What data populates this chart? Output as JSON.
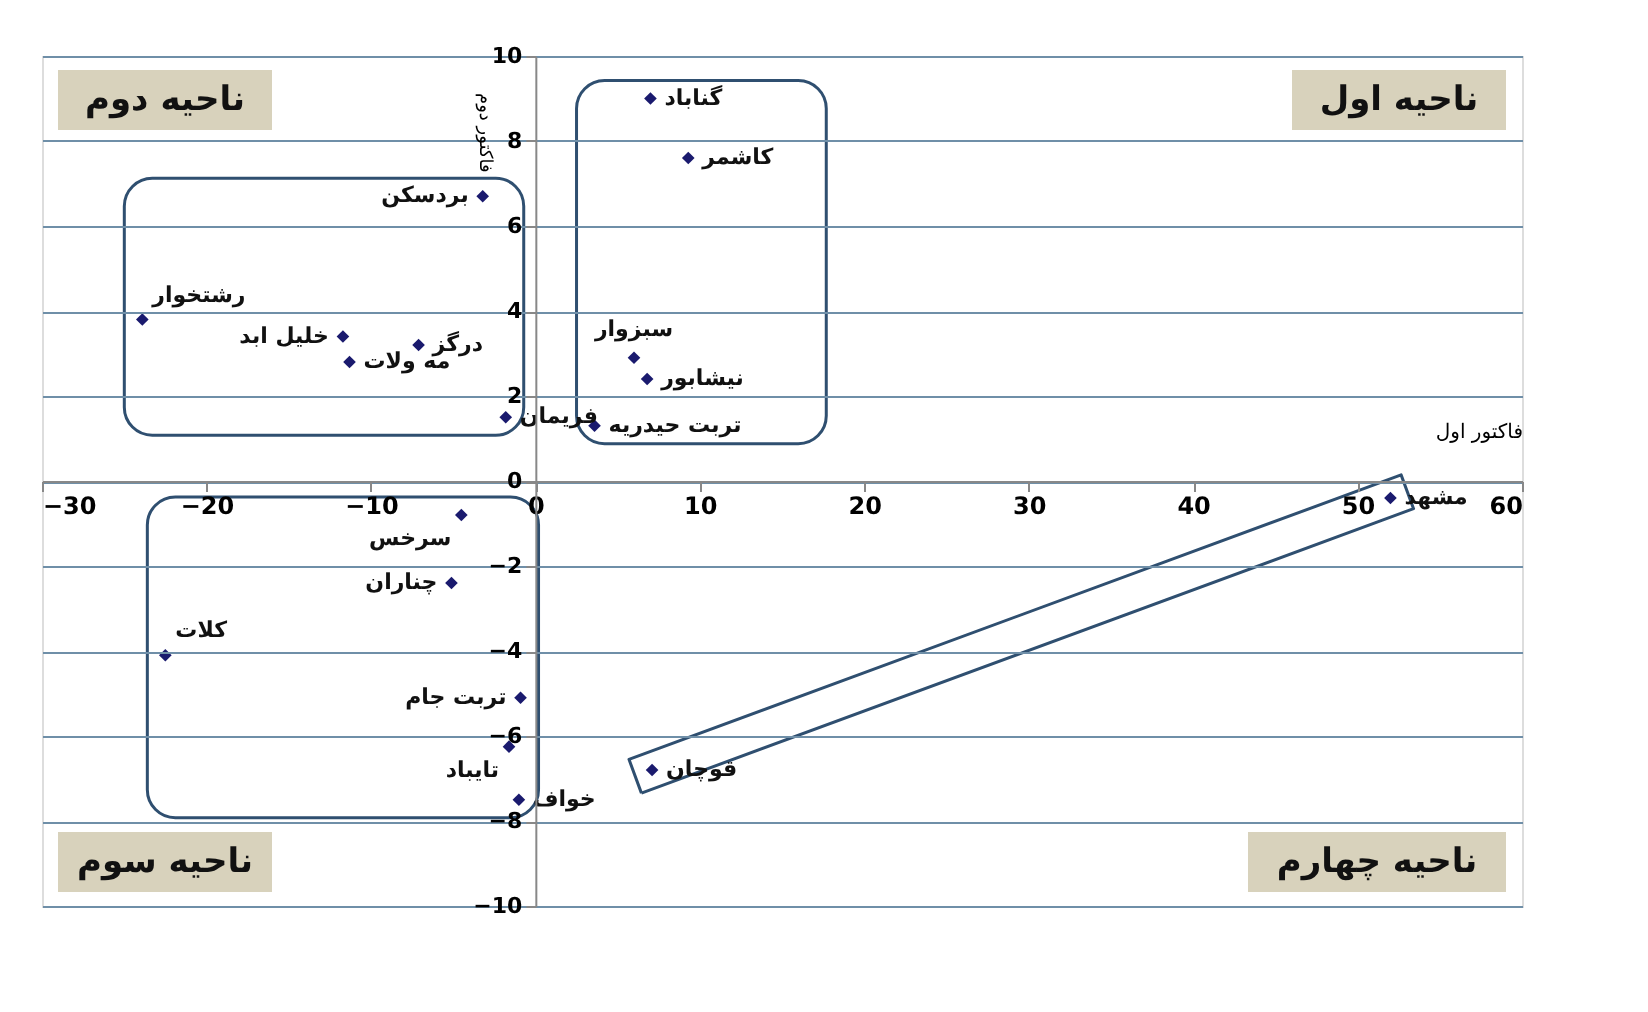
{
  "chart_data": {
    "type": "scatter",
    "xlabel": "فاکتور اول",
    "ylabel": "فاکتور دوم",
    "x": [
      7.0,
      9.3,
      -3.2,
      -23.9,
      -11.7,
      -11.3,
      -7.1,
      -1.8,
      6.0,
      6.8,
      3.6,
      -4.5,
      -5.1,
      -22.5,
      -0.9,
      -1.6,
      -1.0,
      7.1,
      52.0
    ],
    "series": [
      {
        "color": "#1a1a6e",
        "values": [
          9.0,
          7.6,
          6.7,
          3.8,
          3.4,
          2.8,
          3.2,
          1.5,
          2.9,
          2.4,
          1.3,
          -0.8,
          -2.4,
          -4.1,
          -5.1,
          -6.25,
          -7.5,
          -6.8,
          -0.4
        ]
      }
    ],
    "annotations": [
      {
        "text": "گناباد",
        "x": 7.0,
        "y": 9.0
      },
      {
        "text": "کاشمر",
        "x": 9.3,
        "y": 7.6
      },
      {
        "text": "بردسکن",
        "x": -3.2,
        "y": 6.7
      },
      {
        "text": "رشتخوار",
        "x": -23.9,
        "y": 3.8
      },
      {
        "text": "خلیل ابد",
        "x": -11.7,
        "y": 3.4
      },
      {
        "text": "مه ولات",
        "x": -11.3,
        "y": 2.8
      },
      {
        "text": "درگز",
        "x": -7.1,
        "y": 3.2
      },
      {
        "text": "فریمان",
        "x": -1.8,
        "y": 1.5
      },
      {
        "text": "سبزوار",
        "x": 6.0,
        "y": 2.9
      },
      {
        "text": "نیشابور",
        "x": 6.8,
        "y": 2.4
      },
      {
        "text": "تربت حیدریه",
        "x": 3.6,
        "y": 1.3
      },
      {
        "text": "سرخس",
        "x": -4.5,
        "y": -0.8
      },
      {
        "text": "چناران",
        "x": -5.1,
        "y": -2.4
      },
      {
        "text": "کلات",
        "x": -22.5,
        "y": -4.1
      },
      {
        "text": "تربت جام",
        "x": -0.9,
        "y": -5.1
      },
      {
        "text": "تایباد",
        "x": -1.6,
        "y": -6.25
      },
      {
        "text": "خواف",
        "x": -1.0,
        "y": -7.5
      },
      {
        "text": "قوچان",
        "x": 7.1,
        "y": -6.8
      },
      {
        "text": "مشهد",
        "x": 52.0,
        "y": -0.4
      },
      "ناحیه اول",
      "ناحیه دوم",
      "ناحیه سوم",
      "ناحیه چهارم"
    ],
    "xlim": [
      -30,
      60
    ],
    "xticks": [
      -30,
      -20,
      -10,
      0,
      10,
      20,
      30,
      40,
      50,
      60
    ],
    "ylim": [
      -10,
      10
    ],
    "yticks": [
      -10,
      -8,
      -6,
      -4,
      -2,
      0,
      2,
      4,
      6,
      8,
      10
    ],
    "grid": "y",
    "marker": "diamond",
    "legend": false
  }
}
